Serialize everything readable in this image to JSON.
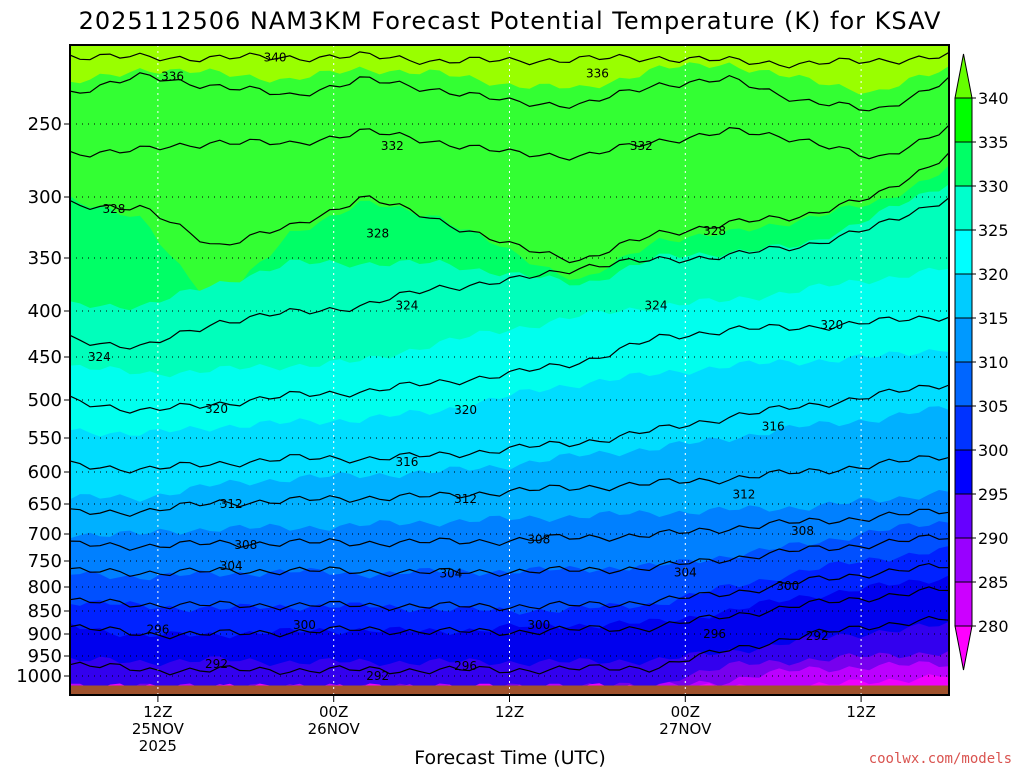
{
  "chart_data": {
    "type": "heatmap",
    "title": "2025112506 NAM3KM Forecast Potential Temperature (K) for KSAV",
    "xlabel": "Forecast Time (UTC)",
    "credit": "coolwx.com/models",
    "y_ticks": [
      250,
      300,
      350,
      400,
      450,
      500,
      550,
      600,
      650,
      700,
      750,
      800,
      850,
      900,
      950,
      1000
    ],
    "y_tick_labels": [
      "250",
      "300",
      "350",
      "400",
      "450",
      "500",
      "550",
      "600",
      "650",
      "700",
      "750",
      "800",
      "850",
      "900",
      "950",
      "1000"
    ],
    "ylim": [
      200,
      1020
    ],
    "x_ticks": [
      {
        "hour": 12,
        "line1": "12Z",
        "line2": "25NOV",
        "line3": "2025"
      },
      {
        "hour": 24,
        "line1": "00Z",
        "line2": "26NOV",
        "line3": ""
      },
      {
        "hour": 36,
        "line1": "12Z",
        "line2": "",
        "line3": ""
      },
      {
        "hour": 48,
        "line1": "00Z",
        "line2": "27NOV",
        "line3": ""
      },
      {
        "hour": 60,
        "line1": "12Z",
        "line2": "",
        "line3": ""
      }
    ],
    "xlim": [
      6,
      66
    ],
    "colorbar": {
      "levels": [
        280,
        285,
        290,
        295,
        300,
        305,
        310,
        315,
        320,
        325,
        330,
        335,
        340
      ],
      "labels": [
        "280",
        "285",
        "290",
        "295",
        "300",
        "305",
        "310",
        "315",
        "320",
        "325",
        "330",
        "335",
        "340"
      ],
      "colors": [
        "#ff00ff",
        "#cc00ff",
        "#9900ff",
        "#6600ff",
        "#0000ff",
        "#0033ff",
        "#0066ff",
        "#0099ff",
        "#00ccff",
        "#00ffff",
        "#00ffcc",
        "#00ff66",
        "#00ff00",
        "#66ff00",
        "#bbff00"
      ]
    },
    "bands": [
      {
        "theta": 337,
        "color": "#99ff00",
        "p": [
          206,
          206,
          206,
          206,
          206,
          206,
          206,
          206,
          206,
          206,
          206,
          206,
          206
        ],
        "top": true
      },
      {
        "theta": 333,
        "color": "#33ff33",
        "p": [
          225,
          215,
          218,
          222,
          215,
          218,
          225,
          228,
          215,
          212,
          222,
          230,
          215
        ]
      },
      {
        "theta": 331,
        "color": "#00ff66",
        "p": [
          300,
          320,
          395,
          330,
          305,
          315,
          345,
          372,
          335,
          330,
          318,
          305,
          280
        ]
      },
      {
        "theta": 327,
        "color": "#00ffbb",
        "p": [
          395,
          395,
          375,
          355,
          355,
          355,
          365,
          375,
          350,
          345,
          340,
          315,
          290
        ]
      },
      {
        "theta": 323,
        "color": "#00ffee",
        "p": [
          460,
          470,
          465,
          460,
          455,
          435,
          420,
          405,
          395,
          390,
          380,
          370,
          360
        ]
      },
      {
        "theta": 319,
        "color": "#00ddff",
        "p": [
          540,
          545,
          535,
          530,
          525,
          515,
          495,
          480,
          470,
          460,
          455,
          450,
          440
        ]
      },
      {
        "theta": 315,
        "color": "#00b0ff",
        "p": [
          640,
          640,
          620,
          610,
          605,
          600,
          590,
          575,
          565,
          550,
          535,
          525,
          510
        ]
      },
      {
        "theta": 311,
        "color": "#0080ff",
        "p": [
          700,
          700,
          690,
          690,
          685,
          680,
          675,
          670,
          665,
          660,
          655,
          645,
          630
        ]
      },
      {
        "theta": 307,
        "color": "#0050ff",
        "p": [
          775,
          780,
          775,
          770,
          775,
          770,
          770,
          765,
          760,
          740,
          720,
          695,
          680
        ]
      },
      {
        "theta": 303,
        "color": "#0022ff",
        "p": [
          830,
          840,
          845,
          840,
          840,
          845,
          850,
          845,
          835,
          800,
          770,
          745,
          730
        ]
      },
      {
        "theta": 299,
        "color": "#0000ee",
        "p": [
          880,
          905,
          900,
          895,
          890,
          895,
          885,
          880,
          875,
          850,
          820,
          800,
          780
        ]
      },
      {
        "theta": 295,
        "color": "#3300ee",
        "p": [
          960,
          965,
          960,
          965,
          965,
          965,
          965,
          965,
          960,
          940,
          915,
          895,
          880
        ]
      },
      {
        "theta": 290,
        "color": "#7700ee",
        "p": [
          1012,
          1012,
          1012,
          1012,
          1012,
          1012,
          1012,
          1010,
          1012,
          975,
          960,
          950,
          940
        ]
      },
      {
        "theta": 286,
        "color": "#bb00ff",
        "p": [
          1012,
          1012,
          1012,
          1012,
          1012,
          1012,
          1012,
          1012,
          1012,
          1005,
          985,
          975,
          970
        ]
      },
      {
        "theta": 282,
        "color": "#ee00ff",
        "p": [
          1012,
          1012,
          1012,
          1012,
          1012,
          1012,
          1012,
          1012,
          1012,
          1012,
          1012,
          1005,
          1000
        ]
      }
    ],
    "band_hours": [
      6,
      11,
      16,
      21,
      26,
      31,
      36,
      41,
      46,
      51,
      56,
      61,
      66
    ],
    "contours": [
      {
        "theta": 340,
        "p": [
          207,
          208,
          208,
          208,
          207,
          210,
          210,
          209,
          208,
          210,
          212,
          210,
          207
        ]
      },
      {
        "theta": 336,
        "p": [
          230,
          220,
          226,
          232,
          222,
          228,
          236,
          238,
          225,
          222,
          235,
          242,
          222
        ]
      },
      {
        "theta": 332,
        "p": [
          270,
          268,
          262,
          264,
          255,
          262,
          270,
          272,
          262,
          255,
          260,
          275,
          252
        ]
      },
      {
        "theta": 328,
        "p": [
          305,
          310,
          340,
          325,
          300,
          318,
          340,
          352,
          330,
          322,
          315,
          300,
          270
        ]
      },
      {
        "theta": 324,
        "p": [
          430,
          440,
          412,
          402,
          395,
          378,
          372,
          358,
          352,
          348,
          340,
          325,
          300
        ]
      },
      {
        "theta": 320,
        "p": [
          500,
          515,
          505,
          495,
          490,
          480,
          470,
          455,
          430,
          420,
          418,
          412,
          405
        ]
      },
      {
        "theta": 316,
        "p": [
          590,
          596,
          588,
          580,
          580,
          576,
          566,
          556,
          540,
          522,
          508,
          495,
          480
        ]
      },
      {
        "theta": 312,
        "p": [
          665,
          662,
          648,
          645,
          640,
          638,
          630,
          624,
          618,
          610,
          600,
          590,
          575
        ]
      },
      {
        "theta": 308,
        "p": [
          720,
          722,
          718,
          716,
          716,
          715,
          712,
          706,
          702,
          690,
          680,
          672,
          660
        ]
      },
      {
        "theta": 304,
        "p": [
          770,
          772,
          770,
          768,
          770,
          772,
          770,
          768,
          762,
          745,
          730,
          718,
          705
        ]
      },
      {
        "theta": 300,
        "p": [
          830,
          836,
          838,
          838,
          838,
          840,
          840,
          838,
          830,
          812,
          790,
          772,
          760
        ]
      },
      {
        "theta": 296,
        "p": [
          885,
          900,
          900,
          895,
          890,
          895,
          895,
          890,
          885,
          860,
          838,
          820,
          805
        ]
      },
      {
        "theta": 292,
        "p": [
          970,
          985,
          985,
          985,
          985,
          985,
          985,
          982,
          978,
          935,
          905,
          880,
          868
        ]
      }
    ],
    "contour_labels": [
      {
        "text": "340",
        "hour": 20,
        "p": 208
      },
      {
        "text": "336",
        "hour": 13,
        "p": 220
      },
      {
        "text": "336",
        "hour": 42,
        "p": 218
      },
      {
        "text": "332",
        "hour": 28,
        "p": 265
      },
      {
        "text": "332",
        "hour": 45,
        "p": 265
      },
      {
        "text": "328",
        "hour": 9,
        "p": 310
      },
      {
        "text": "328",
        "hour": 27,
        "p": 330
      },
      {
        "text": "328",
        "hour": 50,
        "p": 328
      },
      {
        "text": "324",
        "hour": 8,
        "p": 450
      },
      {
        "text": "324",
        "hour": 29,
        "p": 395
      },
      {
        "text": "324",
        "hour": 46,
        "p": 395
      },
      {
        "text": "320",
        "hour": 16,
        "p": 512
      },
      {
        "text": "320",
        "hour": 33,
        "p": 513
      },
      {
        "text": "320",
        "hour": 58,
        "p": 415
      },
      {
        "text": "316",
        "hour": 29,
        "p": 585
      },
      {
        "text": "316",
        "hour": 54,
        "p": 535
      },
      {
        "text": "312",
        "hour": 17,
        "p": 650
      },
      {
        "text": "312",
        "hour": 33,
        "p": 642
      },
      {
        "text": "312",
        "hour": 52,
        "p": 635
      },
      {
        "text": "308",
        "hour": 18,
        "p": 720
      },
      {
        "text": "308",
        "hour": 38,
        "p": 710
      },
      {
        "text": "308",
        "hour": 56,
        "p": 695
      },
      {
        "text": "304",
        "hour": 17,
        "p": 760
      },
      {
        "text": "304",
        "hour": 32,
        "p": 774
      },
      {
        "text": "304",
        "hour": 48,
        "p": 772
      },
      {
        "text": "300",
        "hour": 22,
        "p": 880
      },
      {
        "text": "300",
        "hour": 38,
        "p": 880
      },
      {
        "text": "300",
        "hour": 55,
        "p": 798
      },
      {
        "text": "296",
        "hour": 12,
        "p": 890
      },
      {
        "text": "296",
        "hour": 33,
        "p": 975
      },
      {
        "text": "296",
        "hour": 50,
        "p": 900
      },
      {
        "text": "292",
        "hour": 16,
        "p": 970
      },
      {
        "text": "292",
        "hour": 27,
        "p": 1000
      },
      {
        "text": "292",
        "hour": 57,
        "p": 905
      }
    ],
    "ground": {
      "color": "#a0522d",
      "p_top": 1010
    }
  }
}
